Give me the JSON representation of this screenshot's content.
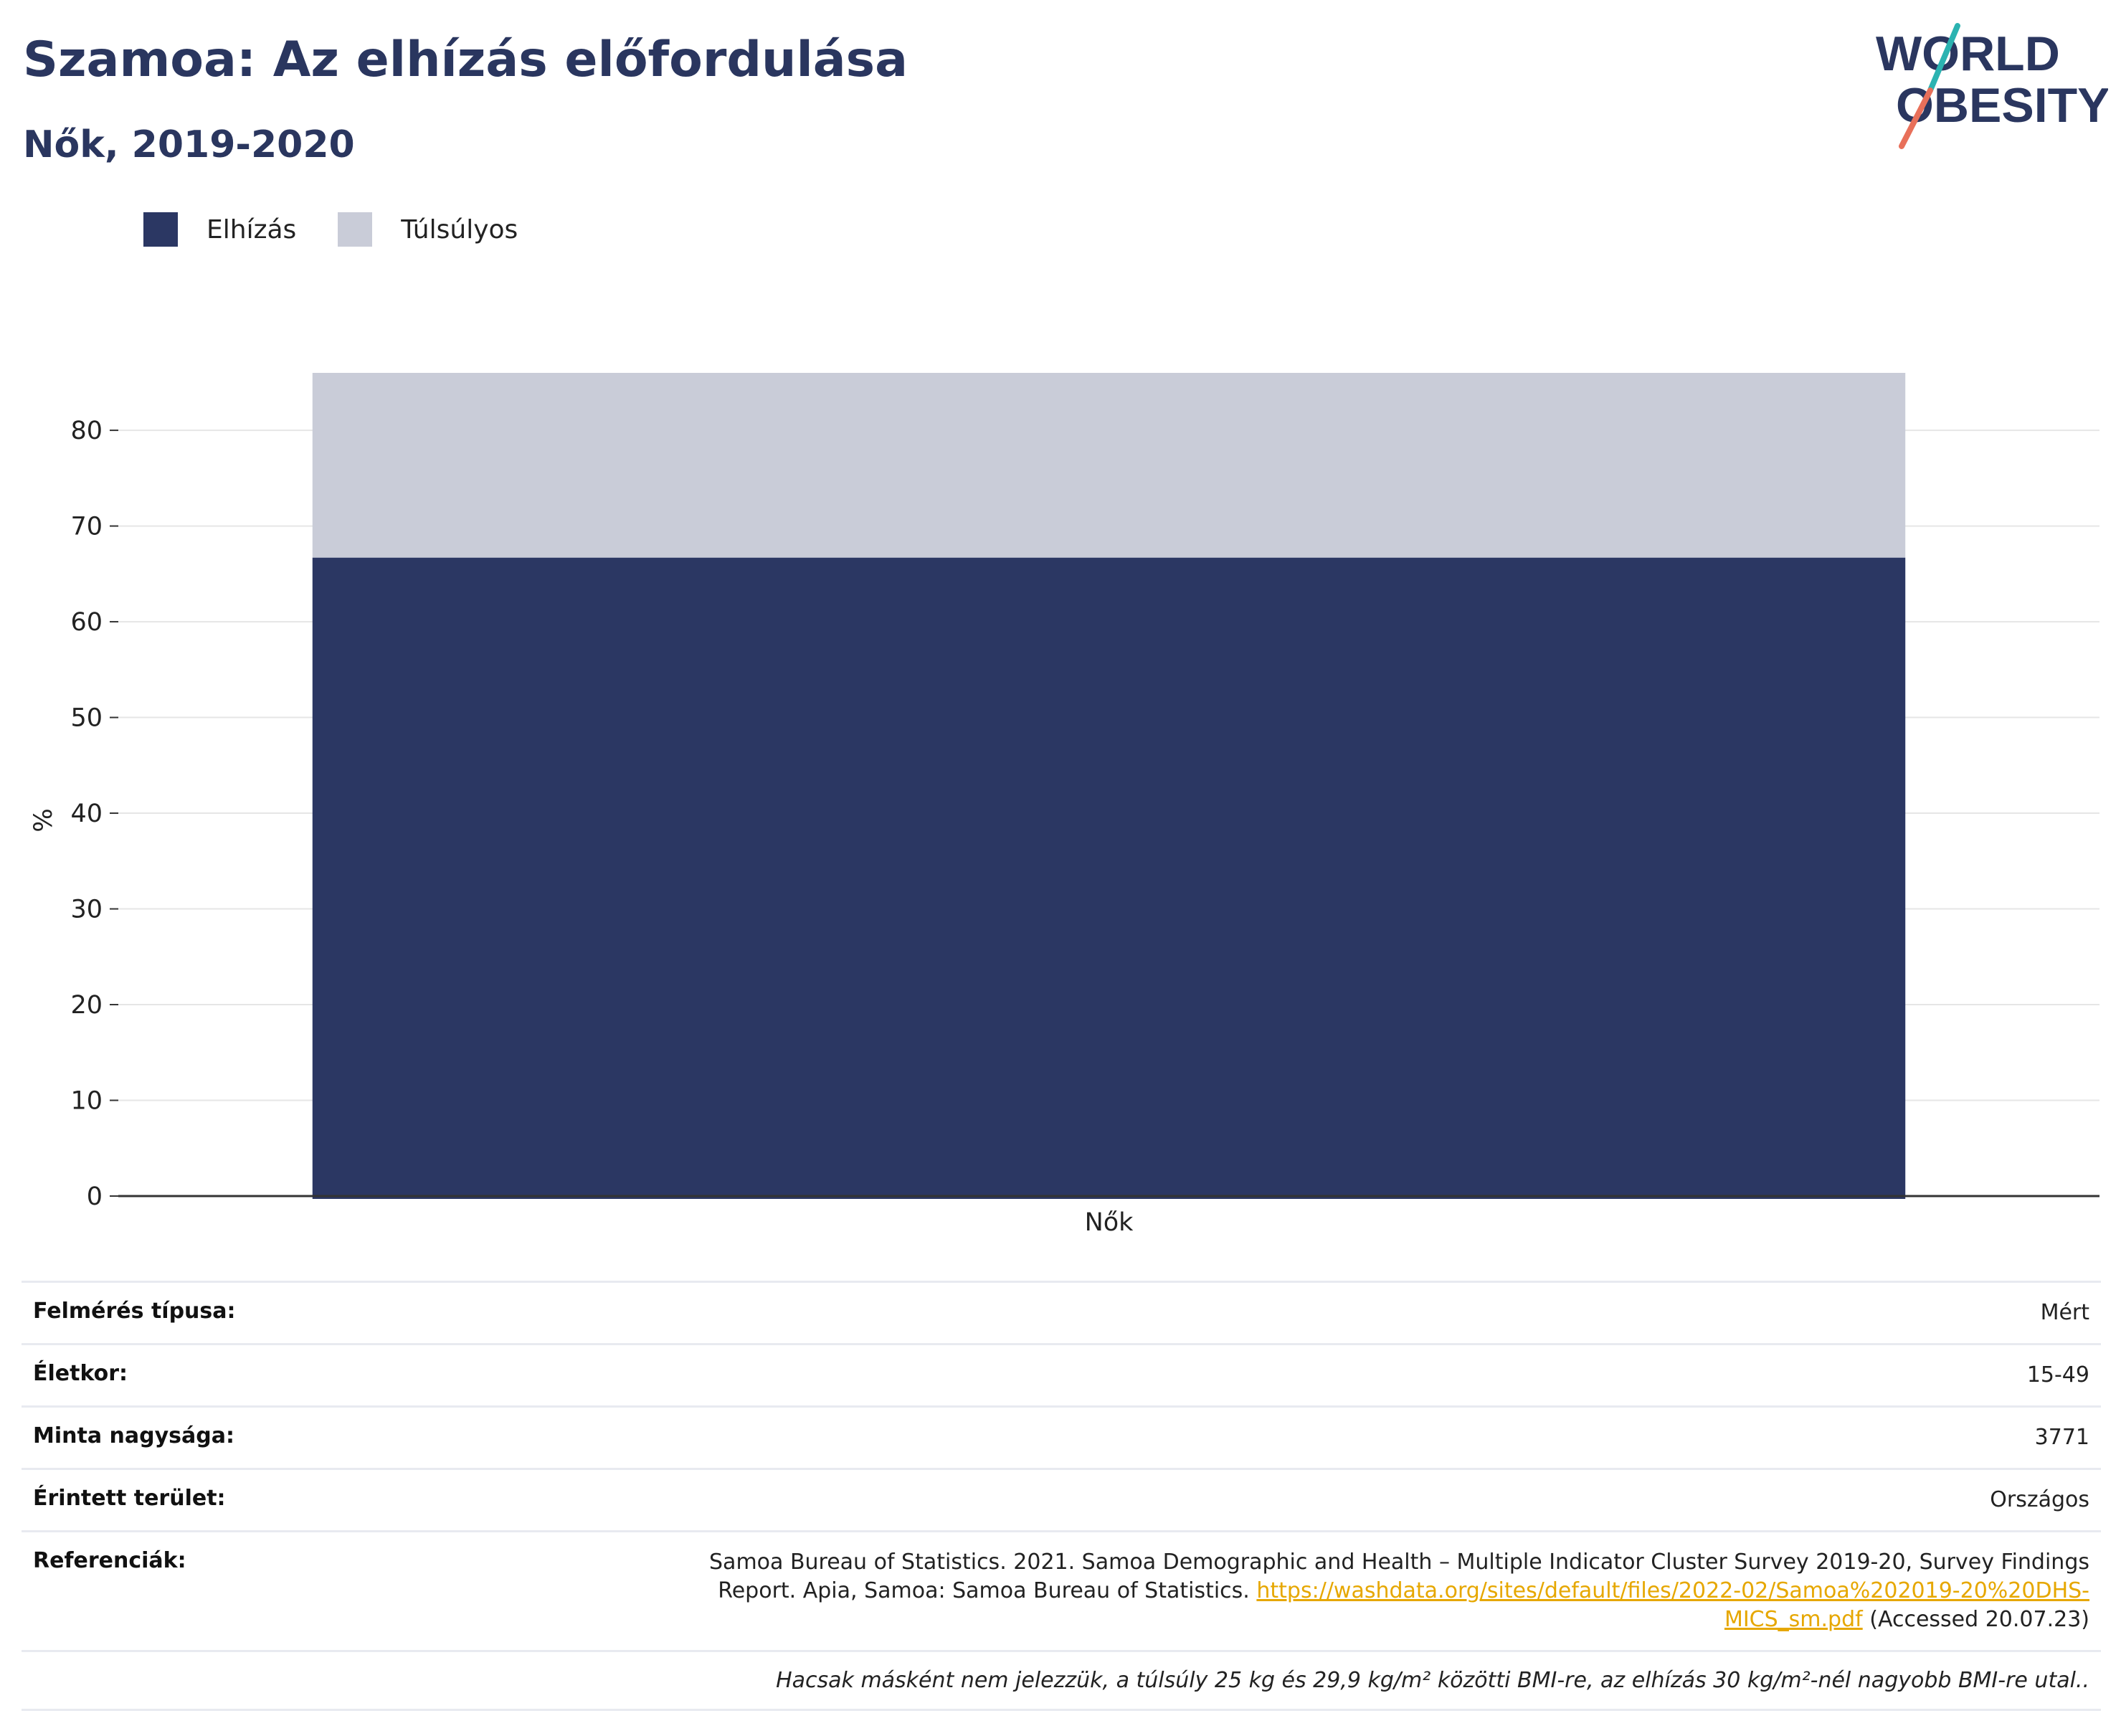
{
  "header": {
    "title": "Szamoa: Az elhízás előfordulása",
    "subtitle": "Nők, 2019-2020"
  },
  "logo": {
    "line1": "WORLD",
    "line2": "OBESITY",
    "accent_teal": "#2bb3b1",
    "accent_coral": "#e8705a",
    "text_color": "#2a365f"
  },
  "colors": {
    "obesity": "#2b3763",
    "overweight": "#c9ccd8",
    "grid": "#e6e6e6",
    "axis": "#333333",
    "link": "#e6a700"
  },
  "chart_data": {
    "type": "bar",
    "stacked": true,
    "categories": [
      "Nők"
    ],
    "series": [
      {
        "name": "Elhízás",
        "values": [
          66.7
        ],
        "color": "#2b3763"
      },
      {
        "name": "Túlsúlyos",
        "values": [
          19.3
        ],
        "color": "#c9ccd8"
      }
    ],
    "ylabel": "%",
    "ylim": [
      0,
      86
    ],
    "yticks": [
      0,
      10,
      20,
      30,
      40,
      50,
      60,
      70,
      80
    ],
    "grid": true,
    "legend": "top-left"
  },
  "info": {
    "survey_type": {
      "label": "Felmérés típusa:",
      "value": "Mért"
    },
    "age": {
      "label": "Életkor:",
      "value": "15-49"
    },
    "sample_size": {
      "label": "Minta nagysága:",
      "value": "3771"
    },
    "area": {
      "label": "Érintett terület:",
      "value": "Országos"
    },
    "references": {
      "label": "Referenciák:",
      "text": "Samoa Bureau of Statistics. 2021. Samoa Demographic and Health – Multiple Indicator Cluster Survey 2019-20, Survey Findings Report. Apia, Samoa: Samoa Bureau of Statistics.",
      "link": "https://washdata.org/sites/default/files/2022-02/Samoa%202019-20%20DHS-MICS_sm.pdf",
      "accessed": "(Accessed 20.07.23)"
    },
    "note": "Hacsak másként nem jelezzük, a túlsúly 25 kg és 29,9 kg/m² közötti BMI-re, az elhízás 30 kg/m²-nél nagyobb BMI-re utal.."
  }
}
